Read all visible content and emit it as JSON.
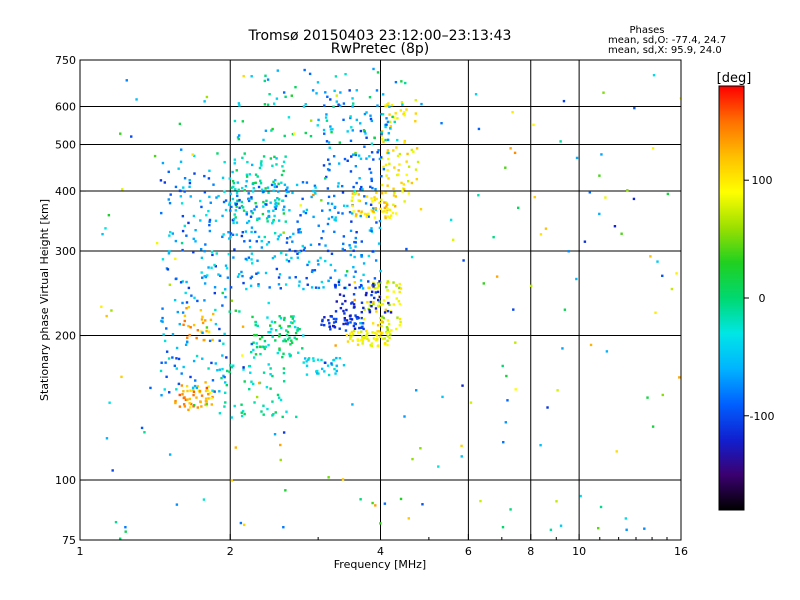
{
  "chart_data": {
    "type": "scatter",
    "title": "Tromsø 20150403 23:12:00–23:13:43",
    "subtitle": "RwPretec (8p)",
    "xlabel": "Frequency [MHz]",
    "ylabel": "Stationary phase Virtual Height [km]",
    "x_scale": "log",
    "y_scale": "log",
    "xlim": [
      1,
      16
    ],
    "ylim": [
      75,
      750
    ],
    "x_ticks": [
      1,
      2,
      4,
      6,
      8,
      10,
      16
    ],
    "x_tick_labels": [
      "1",
      "2",
      "4",
      "6",
      "8",
      "10",
      "16"
    ],
    "y_ticks": [
      75,
      100,
      200,
      300,
      400,
      500,
      600,
      750
    ],
    "y_tick_labels": [
      "75",
      "100",
      "200",
      "300",
      "400",
      "500",
      "600",
      "750"
    ],
    "grid": true,
    "stats": {
      "heading": "Phases",
      "line1": "mean, sd,O: -77.4, 24.7",
      "line2": "mean, sd,X:  95.9, 24.0"
    },
    "colorbar": {
      "label": "[deg]",
      "range": [
        -180,
        180
      ],
      "ticks": [
        100,
        0,
        -100
      ],
      "tick_labels": [
        "100",
        "0",
        "-100"
      ],
      "colormap": [
        "#000000",
        "#3b0070",
        "#1020d0",
        "#0060ff",
        "#00b4ff",
        "#00e6e6",
        "#00d870",
        "#20d020",
        "#9ce000",
        "#ffff00",
        "#ffc000",
        "#ff7000",
        "#ff0000"
      ]
    },
    "clusters": [
      {
        "x": [
          1.55,
          1.85
        ],
        "y": [
          140,
          160
        ],
        "phase": [
          90,
          160
        ],
        "n": 55
      },
      {
        "x": [
          1.55,
          1.85
        ],
        "y": [
          195,
          230
        ],
        "phase": [
          100,
          150
        ],
        "n": 25
      },
      {
        "x": [
          1.45,
          2.0
        ],
        "y": [
          150,
          480
        ],
        "phase": [
          -110,
          -20
        ],
        "n": 180
      },
      {
        "x": [
          2.0,
          2.6
        ],
        "y": [
          320,
          480
        ],
        "phase": [
          -60,
          20
        ],
        "n": 110
      },
      {
        "x": [
          2.0,
          4.0
        ],
        "y": [
          250,
          420
        ],
        "phase": [
          -110,
          -30
        ],
        "n": 260
      },
      {
        "x": [
          2.2,
          2.8
        ],
        "y": [
          180,
          220
        ],
        "phase": [
          -40,
          30
        ],
        "n": 80
      },
      {
        "x": [
          1.9,
          2.6
        ],
        "y": [
          135,
          175
        ],
        "phase": [
          -40,
          10
        ],
        "n": 50
      },
      {
        "x": [
          2.8,
          3.4
        ],
        "y": [
          165,
          180
        ],
        "phase": [
          -60,
          -20
        ],
        "n": 30
      },
      {
        "x": [
          3.0,
          3.7
        ],
        "y": [
          205,
          220
        ],
        "phase": [
          -130,
          -90
        ],
        "n": 50
      },
      {
        "x": [
          3.4,
          4.2
        ],
        "y": [
          190,
          205
        ],
        "phase": [
          70,
          110
        ],
        "n": 60
      },
      {
        "x": [
          3.7,
          4.4
        ],
        "y": [
          205,
          260
        ],
        "phase": [
          50,
          120
        ],
        "n": 70
      },
      {
        "x": [
          3.5,
          4.3
        ],
        "y": [
          350,
          400
        ],
        "phase": [
          80,
          130
        ],
        "n": 60
      },
      {
        "x": [
          4.0,
          4.8
        ],
        "y": [
          380,
          620
        ],
        "phase": [
          70,
          120
        ],
        "n": 70
      },
      {
        "x": [
          3.0,
          4.2
        ],
        "y": [
          420,
          650
        ],
        "phase": [
          -110,
          -40
        ],
        "n": 80
      },
      {
        "x": [
          2.0,
          4.5
        ],
        "y": [
          500,
          720
        ],
        "phase": [
          -90,
          20
        ],
        "n": 70
      },
      {
        "x": [
          3.2,
          4.2
        ],
        "y": [
          220,
          260
        ],
        "phase": [
          -130,
          -100
        ],
        "n": 50
      },
      {
        "x": [
          1.1,
          16.0
        ],
        "y": [
          75,
          720
        ],
        "phase": [
          -120,
          140
        ],
        "n": 200
      }
    ]
  }
}
